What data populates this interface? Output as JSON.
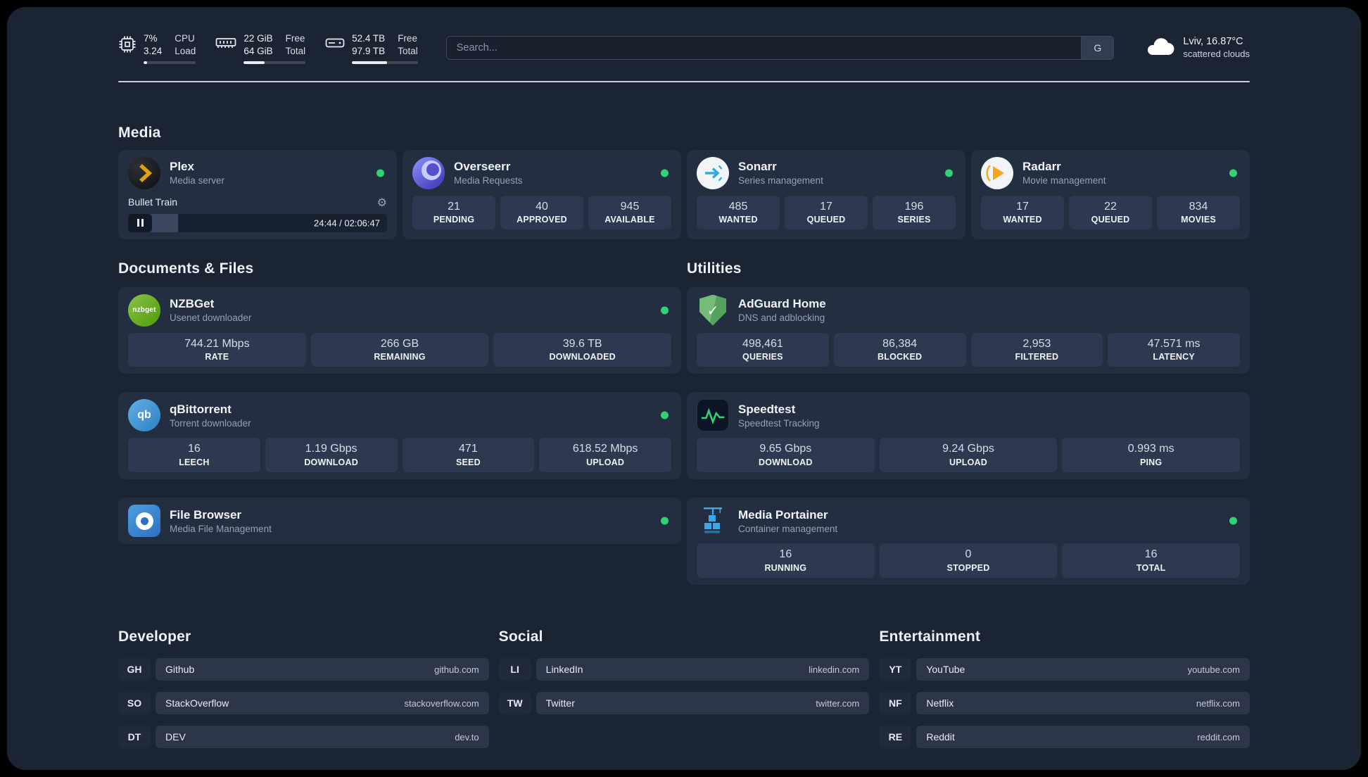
{
  "colors": {
    "panel": "#1b2433",
    "card": "#232e41",
    "tile": "#2d3950",
    "status_green": "#2fd36f",
    "plex_gold": "#e5a00d",
    "sonarr_blue": "#2da8e0",
    "radarr_orange": "#f8a51b",
    "adguard_green": "#68b571",
    "speedtest_green": "#2fd57b",
    "portainer_blue": "#3ba8e8"
  },
  "header": {
    "metrics": [
      {
        "name": "cpu",
        "value_top": "7%",
        "value_bottom": "3.24",
        "label_top": "CPU",
        "label_bottom": "Load",
        "bar_percent": 7
      },
      {
        "name": "memory",
        "value_top": "22 GiB",
        "value_bottom": "64 GiB",
        "label_top": "Free",
        "label_bottom": "Total",
        "bar_percent": 34
      },
      {
        "name": "disk",
        "value_top": "52.4 TB",
        "value_bottom": "97.9 TB",
        "label_top": "Free",
        "label_bottom": "Total",
        "bar_percent": 53
      }
    ],
    "search": {
      "placeholder": "Search...",
      "shortcut_label": "G"
    },
    "weather": {
      "location": "Lviv, 16.87°C",
      "condition": "scattered clouds"
    }
  },
  "sections": {
    "media": {
      "heading": "Media",
      "plex": {
        "title": "Plex",
        "subtitle": "Media server",
        "now_playing": "Bullet Train",
        "time": "24:44 / 02:06:47",
        "progress_percent": 19.4
      },
      "overseerr": {
        "title": "Overseerr",
        "subtitle": "Media Requests",
        "stats": [
          {
            "value": "21",
            "label": "PENDING"
          },
          {
            "value": "40",
            "label": "APPROVED"
          },
          {
            "value": "945",
            "label": "AVAILABLE"
          }
        ]
      },
      "sonarr": {
        "title": "Sonarr",
        "subtitle": "Series management",
        "stats": [
          {
            "value": "485",
            "label": "WANTED"
          },
          {
            "value": "17",
            "label": "QUEUED"
          },
          {
            "value": "196",
            "label": "SERIES"
          }
        ]
      },
      "radarr": {
        "title": "Radarr",
        "subtitle": "Movie management",
        "stats": [
          {
            "value": "17",
            "label": "WANTED"
          },
          {
            "value": "22",
            "label": "QUEUED"
          },
          {
            "value": "834",
            "label": "MOVIES"
          }
        ]
      }
    },
    "documents": {
      "heading": "Documents & Files",
      "nzbget": {
        "title": "NZBGet",
        "subtitle": "Usenet downloader",
        "icon_text": "nzbget",
        "stats": [
          {
            "value": "744.21 Mbps",
            "label": "RATE"
          },
          {
            "value": "266 GB",
            "label": "REMAINING"
          },
          {
            "value": "39.6 TB",
            "label": "DOWNLOADED"
          }
        ]
      },
      "qbittorrent": {
        "title": "qBittorrent",
        "subtitle": "Torrent downloader",
        "icon_text": "qb",
        "stats": [
          {
            "value": "16",
            "label": "LEECH"
          },
          {
            "value": "1.19 Gbps",
            "label": "DOWNLOAD"
          },
          {
            "value": "471",
            "label": "SEED"
          },
          {
            "value": "618.52 Mbps",
            "label": "UPLOAD"
          }
        ]
      },
      "filebrowser": {
        "title": "File Browser",
        "subtitle": "Media File Management"
      }
    },
    "utilities": {
      "heading": "Utilities",
      "adguard": {
        "title": "AdGuard Home",
        "subtitle": "DNS and adblocking",
        "icon_glyph": "✓",
        "stats": [
          {
            "value": "498,461",
            "label": "QUERIES"
          },
          {
            "value": "86,384",
            "label": "BLOCKED"
          },
          {
            "value": "2,953",
            "label": "FILTERED"
          },
          {
            "value": "47.571 ms",
            "label": "LATENCY"
          }
        ]
      },
      "speedtest": {
        "title": "Speedtest",
        "subtitle": "Speedtest Tracking",
        "stats": [
          {
            "value": "9.65 Gbps",
            "label": "DOWNLOAD"
          },
          {
            "value": "9.24 Gbps",
            "label": "UPLOAD"
          },
          {
            "value": "0.993 ms",
            "label": "PING"
          }
        ]
      },
      "portainer": {
        "title": "Media Portainer",
        "subtitle": "Container management",
        "stats": [
          {
            "value": "16",
            "label": "RUNNING"
          },
          {
            "value": "0",
            "label": "STOPPED"
          },
          {
            "value": "16",
            "label": "TOTAL"
          }
        ]
      }
    },
    "links": {
      "developer": {
        "heading": "Developer",
        "items": [
          {
            "abbr": "GH",
            "name": "Github",
            "url": "github.com"
          },
          {
            "abbr": "SO",
            "name": "StackOverflow",
            "url": "stackoverflow.com"
          },
          {
            "abbr": "DT",
            "name": "DEV",
            "url": "dev.to"
          }
        ]
      },
      "social": {
        "heading": "Social",
        "items": [
          {
            "abbr": "LI",
            "name": "LinkedIn",
            "url": "linkedin.com"
          },
          {
            "abbr": "TW",
            "name": "Twitter",
            "url": "twitter.com"
          }
        ]
      },
      "entertainment": {
        "heading": "Entertainment",
        "items": [
          {
            "abbr": "YT",
            "name": "YouTube",
            "url": "youtube.com"
          },
          {
            "abbr": "NF",
            "name": "Netflix",
            "url": "netflix.com"
          },
          {
            "abbr": "RE",
            "name": "Reddit",
            "url": "reddit.com"
          }
        ]
      }
    }
  }
}
